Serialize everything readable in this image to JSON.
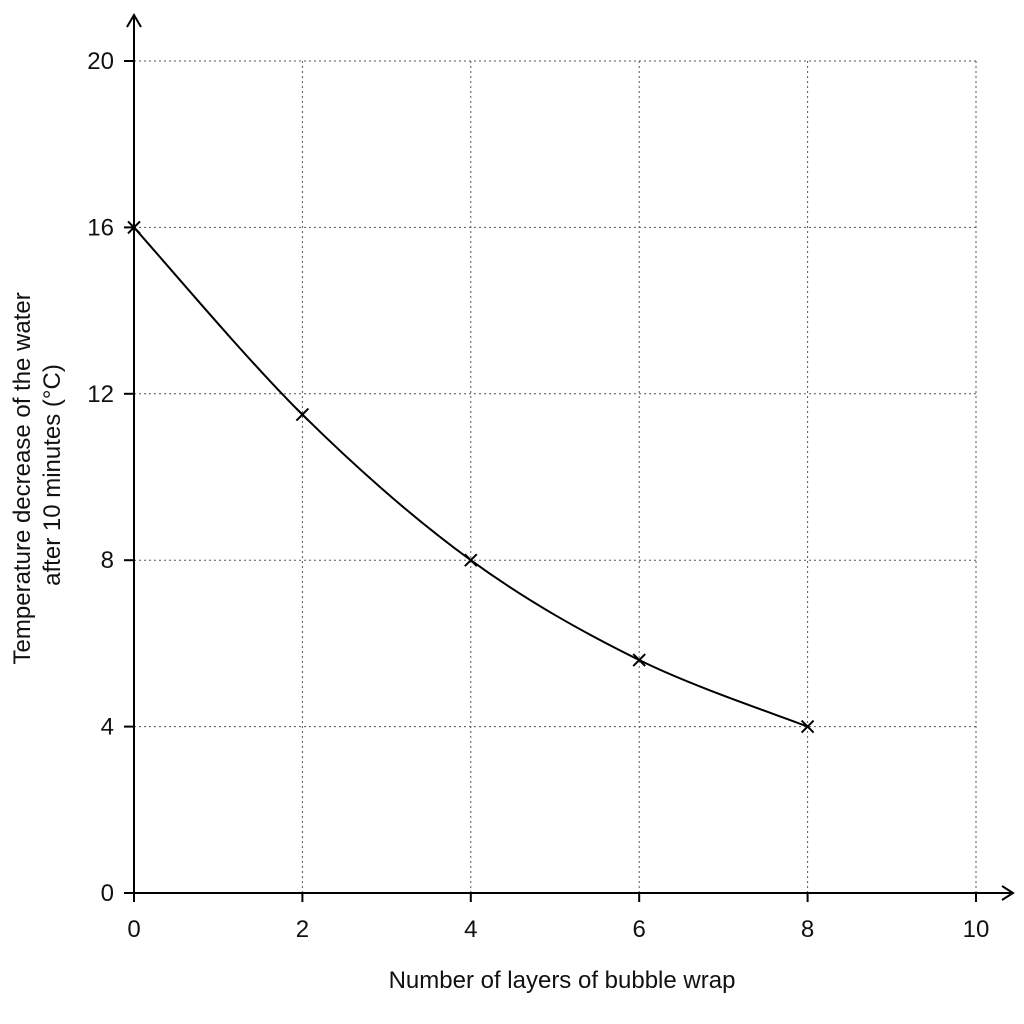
{
  "chart_data": {
    "type": "line",
    "title": "",
    "xlabel": "Number of layers of bubble wrap",
    "ylabel_lines": [
      "Temperature decrease of the water",
      "after 10 minutes (°C)"
    ],
    "xlim": [
      0,
      10
    ],
    "ylim": [
      0,
      20
    ],
    "xticks": [
      0,
      2,
      4,
      6,
      8,
      10
    ],
    "yticks": [
      0,
      4,
      8,
      12,
      16,
      20
    ],
    "grid": true,
    "marker": "x",
    "series": [
      {
        "x": [
          0,
          2,
          4,
          6,
          8
        ],
        "y": [
          16,
          11.5,
          8,
          5.6,
          4
        ]
      }
    ]
  }
}
